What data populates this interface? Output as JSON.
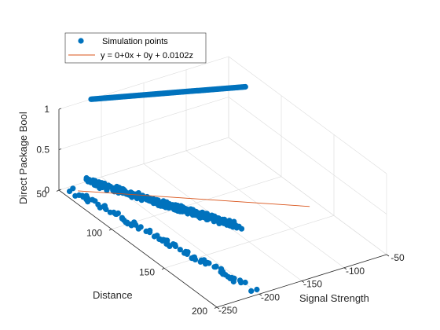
{
  "chart_data": {
    "type": "scatter",
    "subtype": "3d-scatter",
    "title": "",
    "xlabel": "Signal Strength",
    "ylabel": "Distance",
    "zlabel": "Direct Package Bool",
    "xlim": [
      -250,
      -50
    ],
    "ylim": [
      50,
      200
    ],
    "zlim": [
      0,
      1
    ],
    "xticks": [
      -250,
      -200,
      -150,
      -100,
      -50
    ],
    "yticks": [
      50,
      100,
      150,
      200
    ],
    "zticks": [
      0,
      0.5,
      1
    ],
    "grid": true,
    "legend_position": "top-left",
    "series": [
      {
        "name": "Simulation points",
        "kind": "markers",
        "color": "#0072BD",
        "bands": [
          {
            "x_start": -240,
            "x_end": -200,
            "y_start": 56,
            "y_end": 192,
            "z": 0,
            "count": 90,
            "jitter": 3.5
          },
          {
            "x_start": -216,
            "x_end": -142,
            "y_start": 50,
            "y_end": 132,
            "z": 0,
            "count": 320,
            "jitter": 3.0
          },
          {
            "x_start": -212,
            "x_end": -70,
            "y_start": 50,
            "y_end": 82,
            "z": 1,
            "count": 160,
            "jitter": 0.0
          }
        ]
      },
      {
        "name": "y = 0+0x + 0y + 0.0102z",
        "kind": "line",
        "color": "#D95319",
        "points": [
          {
            "x": -235,
            "y": 56,
            "z": 0
          },
          {
            "x": -60,
            "y": 135,
            "z": 0
          }
        ]
      }
    ]
  }
}
